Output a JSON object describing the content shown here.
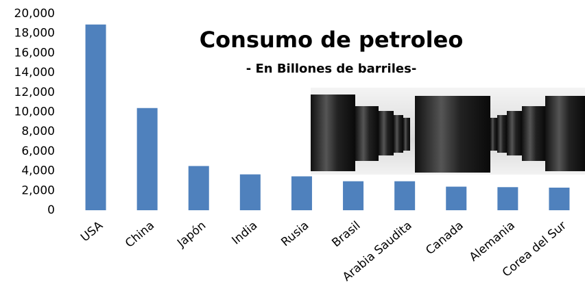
{
  "chart_data": {
    "type": "bar",
    "title": "Consumo de  petroleo",
    "subtitle": "- En Billones de barriles-",
    "categories": [
      "USA",
      "China",
      "Japón",
      "India",
      "Rusia",
      "Brasil",
      "Arabia Saudita",
      "Canada",
      "Alemania",
      "Corea del Sur"
    ],
    "values": [
      18900,
      10400,
      4500,
      3650,
      3450,
      2950,
      2950,
      2400,
      2350,
      2300
    ],
    "color": "#4f81bd",
    "ylim": [
      0,
      20000
    ],
    "yticks": [
      0,
      {
        "value": 2000,
        "label": "2,000"
      },
      {
        "value": 4000,
        "label": "4,000"
      },
      {
        "value": 6000,
        "label": "6,000"
      },
      {
        "value": 8000,
        "label": "8,000"
      },
      {
        "value": 10000,
        "label": "10,000"
      },
      {
        "value": 12000,
        "label": "12,000"
      },
      {
        "value": 14000,
        "label": "14,000"
      },
      {
        "value": 16000,
        "label": "16,000"
      },
      {
        "value": 18000,
        "label": "18,000"
      },
      {
        "value": 20000,
        "label": "20,000"
      }
    ],
    "grid": false
  }
}
